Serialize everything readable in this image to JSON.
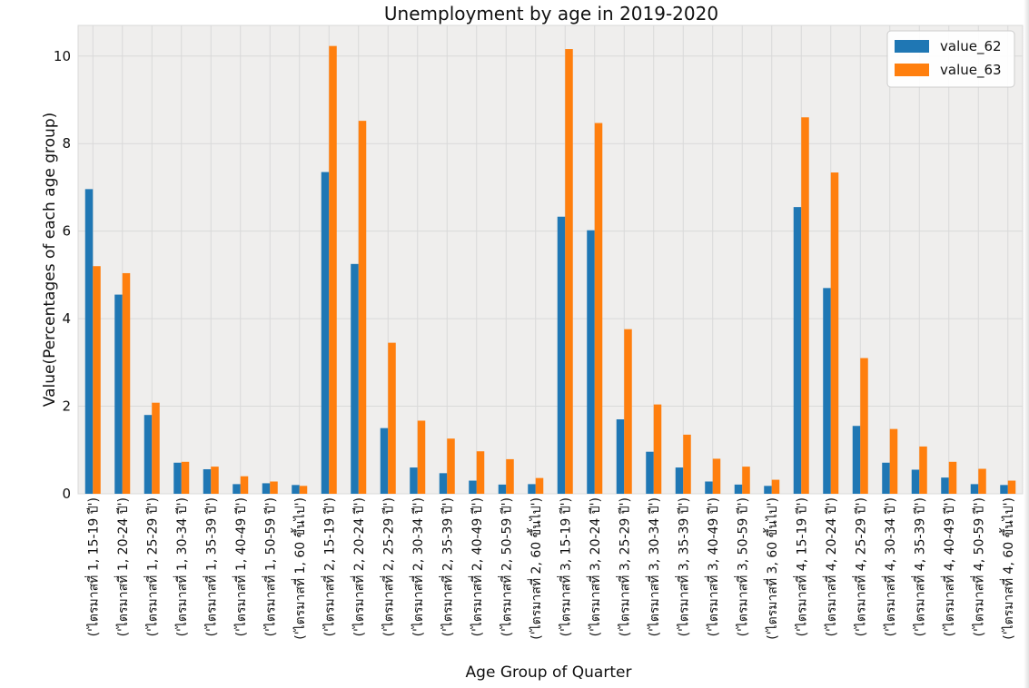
{
  "chart_data": {
    "type": "bar",
    "title": "Unemployment by age in 2019-2020",
    "xlabel": "Age Group of Quarter",
    "ylabel": "Value(Percentages of each age group)",
    "ylim": [
      0,
      10.7
    ],
    "yticks": [
      0,
      2,
      4,
      6,
      8,
      10
    ],
    "grid": true,
    "legend_position": "top-right",
    "categories": [
      "('ไตรมาสที่ 1, 15-19 ปี')",
      "('ไตรมาสที่ 1, 20-24 ปี')",
      "('ไตรมาสที่ 1, 25-29 ปี')",
      "('ไตรมาสที่ 1, 30-34 ปี')",
      "('ไตรมาสที่ 1, 35-39 ปี')",
      "('ไตรมาสที่ 1, 40-49 ปี')",
      "('ไตรมาสที่ 1, 50-59 ปี')",
      "('ไตรมาสที่ 1, 60 ขึ้นไป')",
      "('ไตรมาสที่ 2, 15-19 ปี')",
      "('ไตรมาสที่ 2, 20-24 ปี')",
      "('ไตรมาสที่ 2, 25-29 ปี')",
      "('ไตรมาสที่ 2, 30-34 ปี')",
      "('ไตรมาสที่ 2, 35-39 ปี')",
      "('ไตรมาสที่ 2, 40-49 ปี')",
      "('ไตรมาสที่ 2, 50-59 ปี')",
      "('ไตรมาสที่ 2, 60 ขึ้นไป')",
      "('ไตรมาสที่ 3, 15-19 ปี')",
      "('ไตรมาสที่ 3, 20-24 ปี')",
      "('ไตรมาสที่ 3, 25-29 ปี')",
      "('ไตรมาสที่ 3, 30-34 ปี')",
      "('ไตรมาสที่ 3, 35-39 ปี')",
      "('ไตรมาสที่ 3, 40-49 ปี')",
      "('ไตรมาสที่ 3, 50-59 ปี')",
      "('ไตรมาสที่ 3, 60 ขึ้นไป')",
      "('ไตรมาสที่ 4, 15-19 ปี')",
      "('ไตรมาสที่ 4, 20-24 ปี')",
      "('ไตรมาสที่ 4, 25-29 ปี')",
      "('ไตรมาสที่ 4, 30-34 ปี')",
      "('ไตรมาสที่ 4, 35-39 ปี')",
      "('ไตรมาสที่ 4, 40-49 ปี')",
      "('ไตรมาสที่ 4, 50-59 ปี')",
      "('ไตรมาสที่ 4, 60 ขึ้นไป')"
    ],
    "series": [
      {
        "name": "value_62",
        "color": "#1f77b4",
        "values": [
          6.96,
          4.55,
          1.8,
          0.71,
          0.56,
          0.22,
          0.24,
          0.2,
          7.35,
          5.25,
          1.5,
          0.6,
          0.47,
          0.3,
          0.21,
          0.22,
          6.33,
          6.02,
          1.7,
          0.96,
          0.6,
          0.28,
          0.21,
          0.18,
          6.55,
          4.7,
          1.55,
          0.71,
          0.55,
          0.37,
          0.22,
          0.2
        ]
      },
      {
        "name": "value_63",
        "color": "#ff7f0e",
        "values": [
          5.2,
          5.04,
          2.08,
          0.73,
          0.62,
          0.4,
          0.28,
          0.18,
          10.23,
          8.52,
          3.45,
          1.67,
          1.26,
          0.97,
          0.79,
          0.36,
          10.16,
          8.47,
          3.76,
          2.04,
          1.35,
          0.8,
          0.62,
          0.32,
          8.6,
          7.34,
          3.1,
          1.48,
          1.08,
          0.73,
          0.57,
          0.3
        ]
      }
    ]
  }
}
